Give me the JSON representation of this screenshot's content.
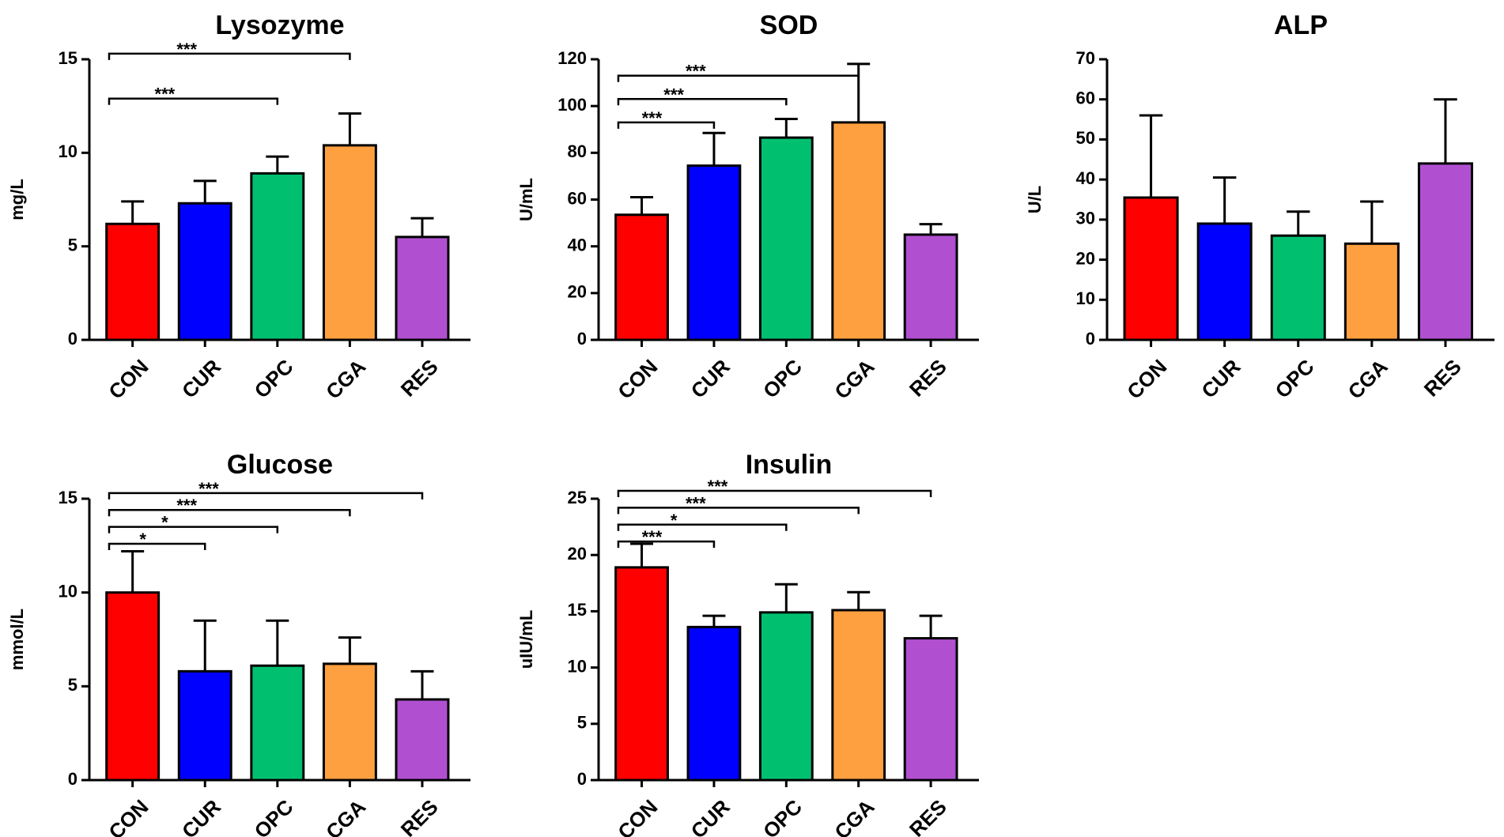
{
  "chart_data": [
    {
      "type": "bar",
      "title": "Lysozyme",
      "ylabel": "mg/L",
      "xlabel": "",
      "categories": [
        "CON",
        "CUR",
        "OPC",
        "CGA",
        "RES"
      ],
      "values": [
        6.2,
        7.3,
        8.9,
        10.4,
        5.5
      ],
      "errors": [
        1.2,
        1.2,
        0.9,
        1.7,
        1.0
      ],
      "ylim": [
        0,
        15
      ],
      "yticks": [
        0,
        5,
        10,
        15
      ],
      "tick_labels": [
        "0",
        "5",
        "10",
        "15"
      ],
      "colors": [
        "#ff0000",
        "#0000ff",
        "#00c070",
        "#ffa040",
        "#b050d0"
      ],
      "significance": [
        {
          "from": 0,
          "to": 2,
          "label": "***",
          "y": 12.9
        },
        {
          "from": 0,
          "to": 3,
          "label": "***",
          "y": 15.3
        }
      ]
    },
    {
      "type": "bar",
      "title": "SOD",
      "ylabel": "U/mL",
      "xlabel": "",
      "categories": [
        "CON",
        "CUR",
        "OPC",
        "CGA",
        "RES"
      ],
      "values": [
        53.5,
        74.5,
        86.5,
        93,
        45
      ],
      "errors": [
        7.5,
        14,
        8,
        25,
        4.5
      ],
      "ylim": [
        0,
        120
      ],
      "yticks": [
        0,
        20,
        40,
        60,
        80,
        100,
        120
      ],
      "tick_labels": [
        "0",
        "20",
        "40",
        "60",
        "80",
        "100",
        "120"
      ],
      "colors": [
        "#ff0000",
        "#0000ff",
        "#00c070",
        "#ffa040",
        "#b050d0"
      ],
      "significance": [
        {
          "from": 0,
          "to": 1,
          "label": "***",
          "y": 93
        },
        {
          "from": 0,
          "to": 2,
          "label": "***",
          "y": 103
        },
        {
          "from": 0,
          "to": 3,
          "label": "***",
          "y": 113
        }
      ]
    },
    {
      "type": "bar",
      "title": "ALP",
      "ylabel": "U/L",
      "xlabel": "",
      "categories": [
        "CON",
        "CUR",
        "OPC",
        "CGA",
        "RES"
      ],
      "values": [
        35.5,
        29,
        26,
        24,
        44
      ],
      "errors": [
        20.5,
        11.5,
        6,
        10.5,
        16
      ],
      "ylim": [
        0,
        70
      ],
      "yticks": [
        0,
        10,
        20,
        30,
        40,
        50,
        60,
        70
      ],
      "tick_labels": [
        "0",
        "10",
        "20",
        "30",
        "40",
        "50",
        "60",
        "70"
      ],
      "colors": [
        "#ff0000",
        "#0000ff",
        "#00c070",
        "#ffa040",
        "#b050d0"
      ],
      "significance": []
    },
    {
      "type": "bar",
      "title": "Glucose",
      "ylabel": "mmol/L",
      "xlabel": "",
      "categories": [
        "CON",
        "CUR",
        "OPC",
        "CGA",
        "RES"
      ],
      "values": [
        10,
        5.8,
        6.1,
        6.2,
        4.3
      ],
      "errors": [
        2.2,
        2.7,
        2.4,
        1.4,
        1.5
      ],
      "ylim": [
        0,
        15
      ],
      "yticks": [
        0,
        5,
        10,
        15
      ],
      "tick_labels": [
        "0",
        "5",
        "10",
        "15"
      ],
      "colors": [
        "#ff0000",
        "#0000ff",
        "#00c070",
        "#ffa040",
        "#b050d0"
      ],
      "significance": [
        {
          "from": 0,
          "to": 1,
          "label": "*",
          "y": 12.6
        },
        {
          "from": 0,
          "to": 2,
          "label": "*",
          "y": 13.5
        },
        {
          "from": 0,
          "to": 3,
          "label": "***",
          "y": 14.4
        },
        {
          "from": 0,
          "to": 4,
          "label": "***",
          "y": 15.3
        }
      ]
    },
    {
      "type": "bar",
      "title": "Insulin",
      "ylabel": "uIU/mL",
      "xlabel": "",
      "categories": [
        "CON",
        "CUR",
        "OPC",
        "CGA",
        "RES"
      ],
      "values": [
        18.9,
        13.6,
        14.9,
        15.1,
        12.6
      ],
      "errors": [
        2.1,
        1.0,
        2.5,
        1.6,
        2.0
      ],
      "ylim": [
        0,
        25
      ],
      "yticks": [
        0,
        5,
        10,
        15,
        20,
        25
      ],
      "tick_labels": [
        "0",
        "5",
        "10",
        "15",
        "20",
        "25"
      ],
      "colors": [
        "#ff0000",
        "#0000ff",
        "#00c070",
        "#ffa040",
        "#b050d0"
      ],
      "significance": [
        {
          "from": 0,
          "to": 1,
          "label": "***",
          "y": 21.2
        },
        {
          "from": 0,
          "to": 2,
          "label": "*",
          "y": 22.7
        },
        {
          "from": 0,
          "to": 3,
          "label": "***",
          "y": 24.2
        },
        {
          "from": 0,
          "to": 4,
          "label": "***",
          "y": 25.7
        }
      ]
    }
  ]
}
